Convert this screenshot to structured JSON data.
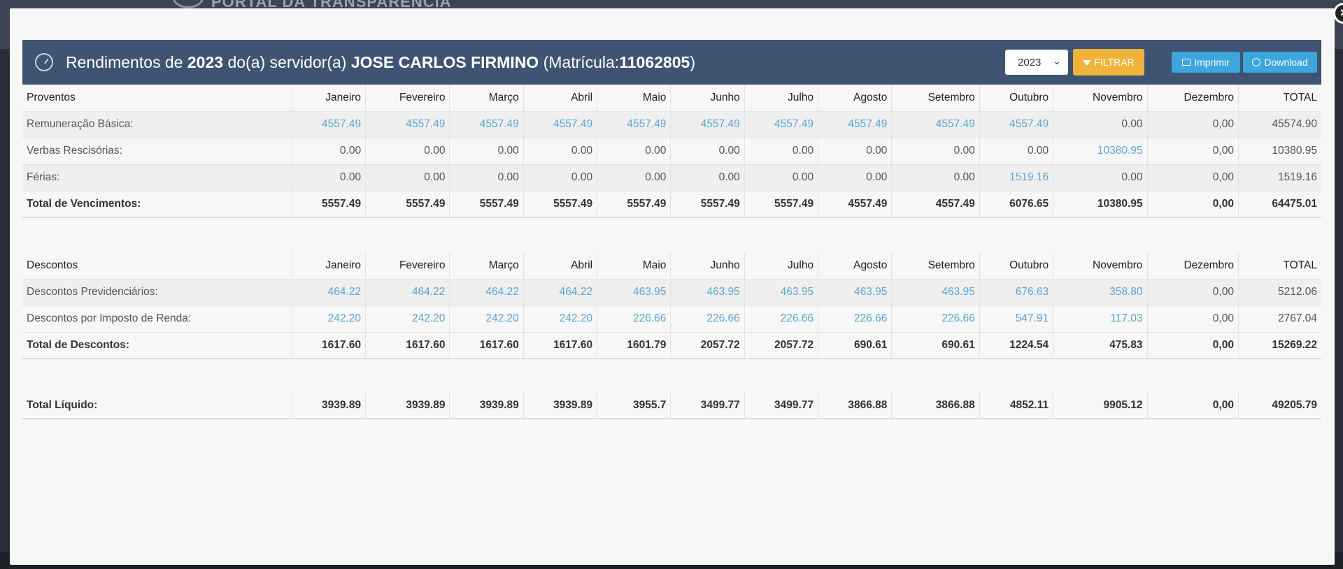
{
  "background": {
    "logo_text": "PORTAL DA TRANSPARÊNCIA"
  },
  "modal": {
    "close_label": "×",
    "header": {
      "title_prefix": "Rendimentos de",
      "year": "2023",
      "title_mid": "do(a) servidor(a)",
      "employee_name": "JOSE CARLOS FIRMINO",
      "registration_prefix": "(Matrícula:",
      "registration_number": "11062805",
      "registration_suffix": ")"
    },
    "controls": {
      "year_selected": "2023",
      "filter_label": "FILTRAR",
      "print_label": "Imprimir",
      "download_label": "Download"
    }
  },
  "months": [
    "Janeiro",
    "Fevereiro",
    "Março",
    "Abril",
    "Maio",
    "Junho",
    "Julho",
    "Agosto",
    "Setembro",
    "Outubro",
    "Novembro",
    "Dezembro"
  ],
  "total_header": "TOTAL",
  "proventos": {
    "header": "Proventos",
    "rows": [
      {
        "label": "Remuneração Básica:",
        "values": [
          "4557.49",
          "4557.49",
          "4557.49",
          "4557.49",
          "4557.49",
          "4557.49",
          "4557.49",
          "4557.49",
          "4557.49",
          "4557.49",
          "0.00",
          "0,00"
        ],
        "total": "45574.90",
        "links": [
          true,
          true,
          true,
          true,
          true,
          true,
          true,
          true,
          true,
          true,
          false,
          false
        ]
      },
      {
        "label": "Verbas Rescisórias:",
        "values": [
          "0.00",
          "0.00",
          "0.00",
          "0.00",
          "0.00",
          "0.00",
          "0.00",
          "0.00",
          "0.00",
          "0.00",
          "10380.95",
          "0,00"
        ],
        "total": "10380.95",
        "links": [
          false,
          false,
          false,
          false,
          false,
          false,
          false,
          false,
          false,
          false,
          true,
          false
        ]
      },
      {
        "label": "Férias:",
        "values": [
          "0.00",
          "0.00",
          "0.00",
          "0.00",
          "0.00",
          "0.00",
          "0.00",
          "0.00",
          "0.00",
          "1519.16",
          "0.00",
          "0,00"
        ],
        "total": "1519.16",
        "links": [
          false,
          false,
          false,
          false,
          false,
          false,
          false,
          false,
          false,
          true,
          false,
          false
        ]
      }
    ],
    "total_row": {
      "label": "Total de Vencimentos:",
      "values": [
        "5557.49",
        "5557.49",
        "5557.49",
        "5557.49",
        "5557.49",
        "5557.49",
        "5557.49",
        "4557.49",
        "4557.49",
        "6076.65",
        "10380.95",
        "0,00"
      ],
      "total": "64475.01"
    }
  },
  "descontos": {
    "header": "Descontos",
    "rows": [
      {
        "label": "Descontos Previdenciários:",
        "values": [
          "464.22",
          "464.22",
          "464.22",
          "464.22",
          "463.95",
          "463.95",
          "463.95",
          "463.95",
          "463.95",
          "676.63",
          "358.80",
          "0,00"
        ],
        "total": "5212.06",
        "links": [
          true,
          true,
          true,
          true,
          true,
          true,
          true,
          true,
          true,
          true,
          true,
          false
        ]
      },
      {
        "label": "Descontos por Imposto de Renda:",
        "values": [
          "242.20",
          "242.20",
          "242.20",
          "242.20",
          "226.66",
          "226.66",
          "226.66",
          "226.66",
          "226.66",
          "547.91",
          "117.03",
          "0,00"
        ],
        "total": "2767.04",
        "links": [
          true,
          true,
          true,
          true,
          true,
          true,
          true,
          true,
          true,
          true,
          true,
          false
        ]
      }
    ],
    "total_row": {
      "label": "Total de Descontos:",
      "values": [
        "1617.60",
        "1617.60",
        "1617.60",
        "1617.60",
        "1601.79",
        "2057.72",
        "2057.72",
        "690.61",
        "690.61",
        "1224.54",
        "475.83",
        "0,00"
      ],
      "total": "15269.22"
    }
  },
  "liquido": {
    "label": "Total Líquido:",
    "values": [
      "3939.89",
      "3939.89",
      "3939.89",
      "3939.89",
      "3955.7",
      "3499.77",
      "3499.77",
      "3866.88",
      "3866.88",
      "4852.11",
      "9905.12",
      "0,00"
    ],
    "total": "49205.79"
  }
}
